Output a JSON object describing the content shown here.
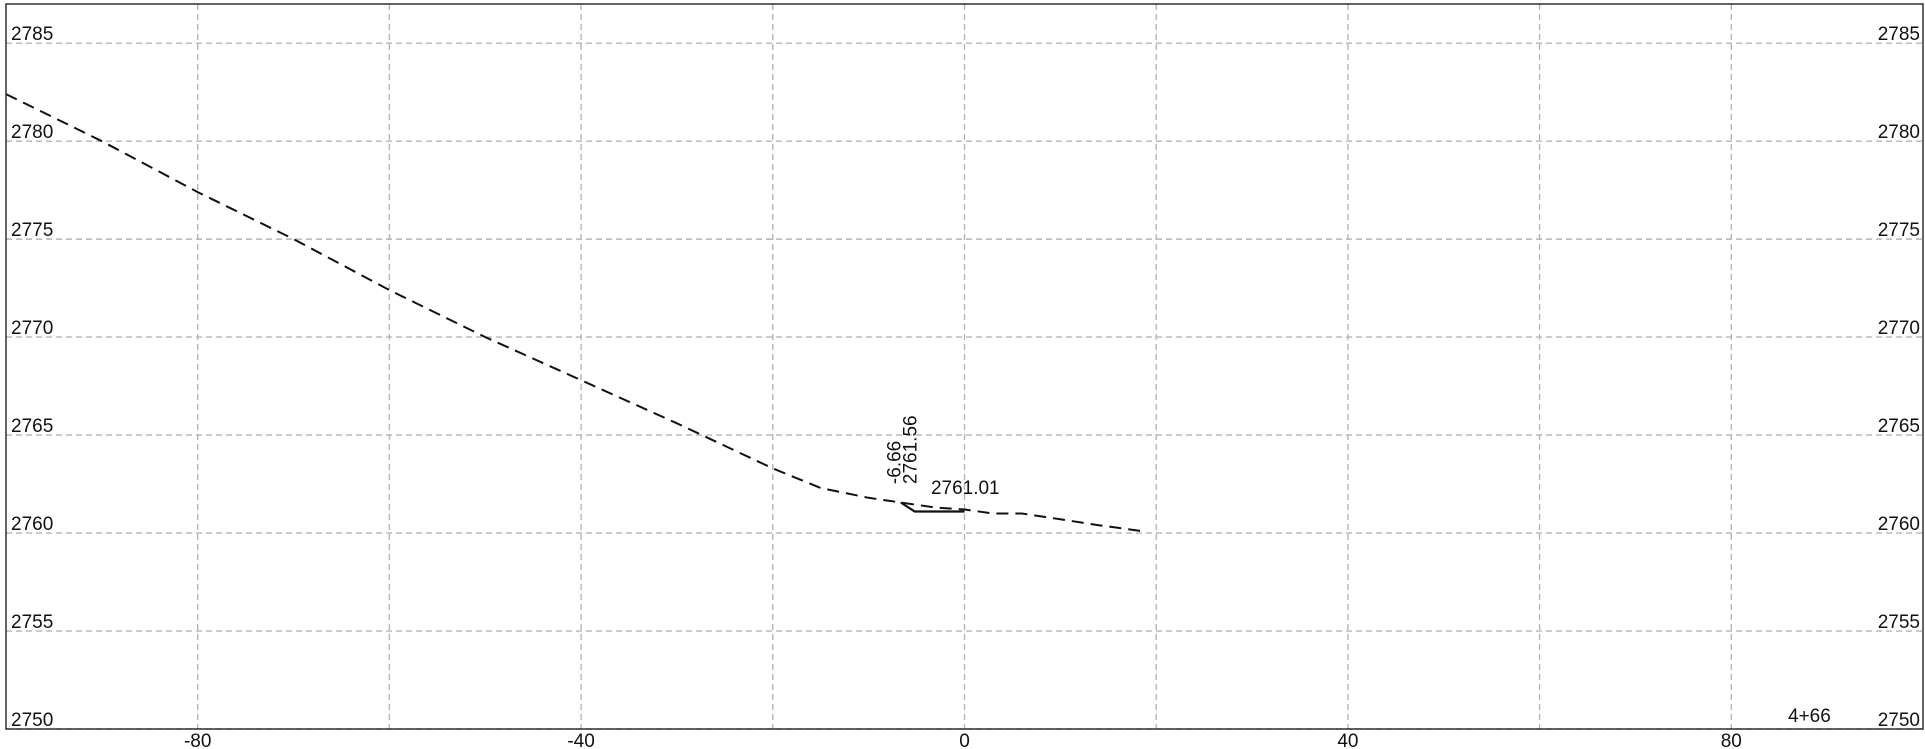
{
  "chart_data": {
    "type": "line",
    "title": "",
    "xlabel": "",
    "ylabel": "",
    "xlim": [
      -100,
      100
    ],
    "ylim": [
      2750,
      2787
    ],
    "x_ticks": [
      -80,
      -40,
      0,
      40,
      80
    ],
    "x_gridlines": [
      -80,
      -60,
      -40,
      -20,
      0,
      20,
      40,
      60,
      80
    ],
    "y_ticks": [
      2750,
      2755,
      2760,
      2765,
      2770,
      2775,
      2780,
      2785
    ],
    "grid": true,
    "station_label": "4+66",
    "series": [
      {
        "style": "dashed",
        "points": [
          [
            -100,
            2782.4
          ],
          [
            -90,
            2780.0
          ],
          [
            -80,
            2777.4
          ],
          [
            -70,
            2775.0
          ],
          [
            -60,
            2772.4
          ],
          [
            -50,
            2770.0
          ],
          [
            -40,
            2767.8
          ],
          [
            -30,
            2765.6
          ],
          [
            -20,
            2763.3
          ],
          [
            -15,
            2762.3
          ],
          [
            -10,
            2761.8
          ],
          [
            -6.66,
            2761.56
          ],
          [
            -3,
            2761.3
          ],
          [
            0,
            2761.2
          ],
          [
            3,
            2761.0
          ],
          [
            6,
            2761.0
          ],
          [
            10,
            2760.7
          ],
          [
            14,
            2760.4
          ],
          [
            18.5,
            2760.1
          ]
        ]
      },
      {
        "style": "solid",
        "points": [
          [
            -6.66,
            2761.56
          ],
          [
            -5.2,
            2761.1
          ],
          [
            0,
            2761.1
          ]
        ]
      }
    ],
    "annotations": [
      {
        "text": "-6.66",
        "x": -6.66,
        "y": 2762.5,
        "rotation": -90
      },
      {
        "text": "2761.56",
        "x": -5.0,
        "y": 2762.5,
        "rotation": -90
      },
      {
        "text": "2761.01",
        "x": -3.5,
        "y": 2762.0,
        "rotation": 0
      }
    ]
  }
}
